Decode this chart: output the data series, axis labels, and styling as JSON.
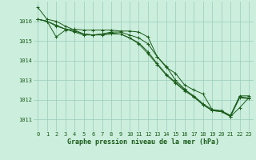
{
  "background_color": "#cceedd",
  "grid_color": "#99ccbb",
  "line_color": "#1a5c1a",
  "xlabel": "Graphe pression niveau de la mer (hPa)",
  "xlabel_fontsize": 6.0,
  "tick_fontsize": 5.0,
  "xlim": [
    -0.5,
    23.5
  ],
  "ylim": [
    1010.4,
    1017.0
  ],
  "yticks": [
    1011,
    1012,
    1013,
    1014,
    1015,
    1016
  ],
  "xticks": [
    0,
    1,
    2,
    3,
    4,
    5,
    6,
    7,
    8,
    9,
    10,
    11,
    12,
    13,
    14,
    15,
    16,
    17,
    18,
    19,
    20,
    21,
    22,
    23
  ],
  "series": [
    [
      1016.7,
      1016.1,
      1016.0,
      1015.75,
      1015.55,
      1015.35,
      1015.3,
      1015.35,
      1015.45,
      1015.45,
      1015.3,
      1015.15,
      1014.85,
      1014.2,
      1013.65,
      1013.35,
      1012.75,
      1012.5,
      1012.3,
      1011.5,
      1011.45,
      1011.2,
      1012.2,
      1012.2
    ],
    [
      1016.1,
      1016.0,
      1015.75,
      1015.6,
      1015.5,
      1015.35,
      1015.3,
      1015.35,
      1015.4,
      1015.35,
      1015.15,
      1014.9,
      1014.45,
      1013.85,
      1013.3,
      1012.9,
      1012.5,
      1012.2,
      1011.8,
      1011.5,
      1011.4,
      1011.2,
      1012.15,
      1012.1
    ],
    [
      1016.1,
      1016.0,
      1015.8,
      1015.6,
      1015.45,
      1015.3,
      1015.3,
      1015.3,
      1015.35,
      1015.35,
      1015.15,
      1014.85,
      1014.35,
      1013.8,
      1013.25,
      1012.85,
      1012.45,
      1012.15,
      1011.75,
      1011.45,
      1011.4,
      1011.15,
      1012.1,
      1012.05
    ],
    [
      1016.1,
      1016.0,
      1015.2,
      1015.55,
      1015.6,
      1015.55,
      1015.55,
      1015.55,
      1015.55,
      1015.5,
      1015.5,
      1015.45,
      1015.2,
      1014.2,
      1013.7,
      1013.0,
      1012.55,
      1012.15,
      1011.75,
      1011.45,
      1011.4,
      1011.15,
      1011.6,
      1012.1
    ]
  ]
}
